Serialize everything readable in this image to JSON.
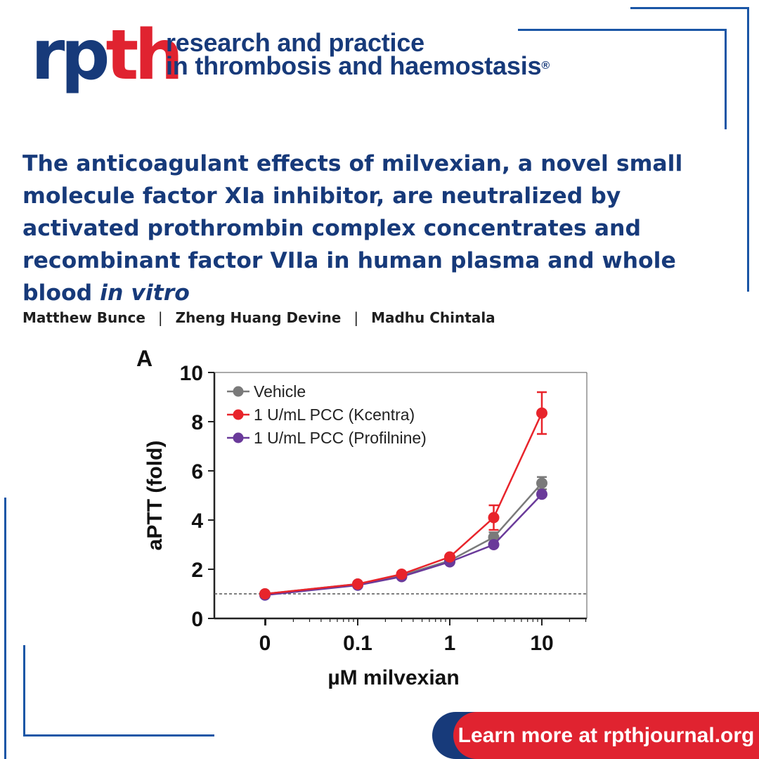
{
  "header": {
    "logo": "rpth",
    "logo_part1": "rp",
    "logo_part2": "th",
    "journal_line1": "research and practice",
    "journal_line2": "in thrombosis and haemostasis",
    "registered_mark": "®"
  },
  "article": {
    "title": "The anticoagulant effects of milvexian, a novel small molecule factor XIa inhibitor, are neutralized by activated prothrombin complex concentrates and recombinant factor VIIa in human plasma and whole blood",
    "title_italic": "in vitro",
    "authors": [
      "Matthew Bunce",
      "Zheng Huang Devine",
      "Madhu Chintala"
    ],
    "separator": "|"
  },
  "cta": {
    "label": "Learn more at rpthjournal.org"
  },
  "colors": {
    "navy": "#173a7a",
    "red": "#e02330",
    "frame": "#1a56a6",
    "vehicle": "#7a7a7a",
    "kcentra": "#e8242b",
    "profilnine": "#6a3a9a"
  },
  "chart_data": {
    "type": "line",
    "panel_label": "A",
    "xlabel": "µM milvexian",
    "ylabel": "aPTT (fold)",
    "xscale": "log",
    "x": [
      0,
      0.1,
      0.3,
      1,
      3,
      10
    ],
    "xtick_labels": [
      "0",
      "0.1",
      "1",
      "10"
    ],
    "xtick_values": [
      0,
      0.1,
      1,
      10
    ],
    "ylim": [
      0,
      10
    ],
    "yticks": [
      0,
      2,
      4,
      6,
      8,
      10
    ],
    "reference_line": 1,
    "legend_position": "top-left",
    "series": [
      {
        "name": "Vehicle",
        "color": "#7a7a7a",
        "values": [
          1.0,
          1.4,
          1.75,
          2.35,
          3.3,
          5.5
        ],
        "errors": [
          0.05,
          0.05,
          0.05,
          0.1,
          0.2,
          0.25
        ]
      },
      {
        "name": "1 U/mL PCC (Kcentra)",
        "color": "#e8242b",
        "values": [
          1.0,
          1.4,
          1.8,
          2.5,
          4.1,
          8.35
        ],
        "errors": [
          0.05,
          0.05,
          0.05,
          0.1,
          0.5,
          0.85
        ]
      },
      {
        "name": "1 U/mL PCC (Profilnine)",
        "color": "#6a3a9a",
        "values": [
          0.95,
          1.35,
          1.7,
          2.3,
          3.0,
          5.05
        ],
        "errors": [
          0.05,
          0.05,
          0.05,
          0.05,
          0.1,
          0.15
        ]
      }
    ]
  }
}
